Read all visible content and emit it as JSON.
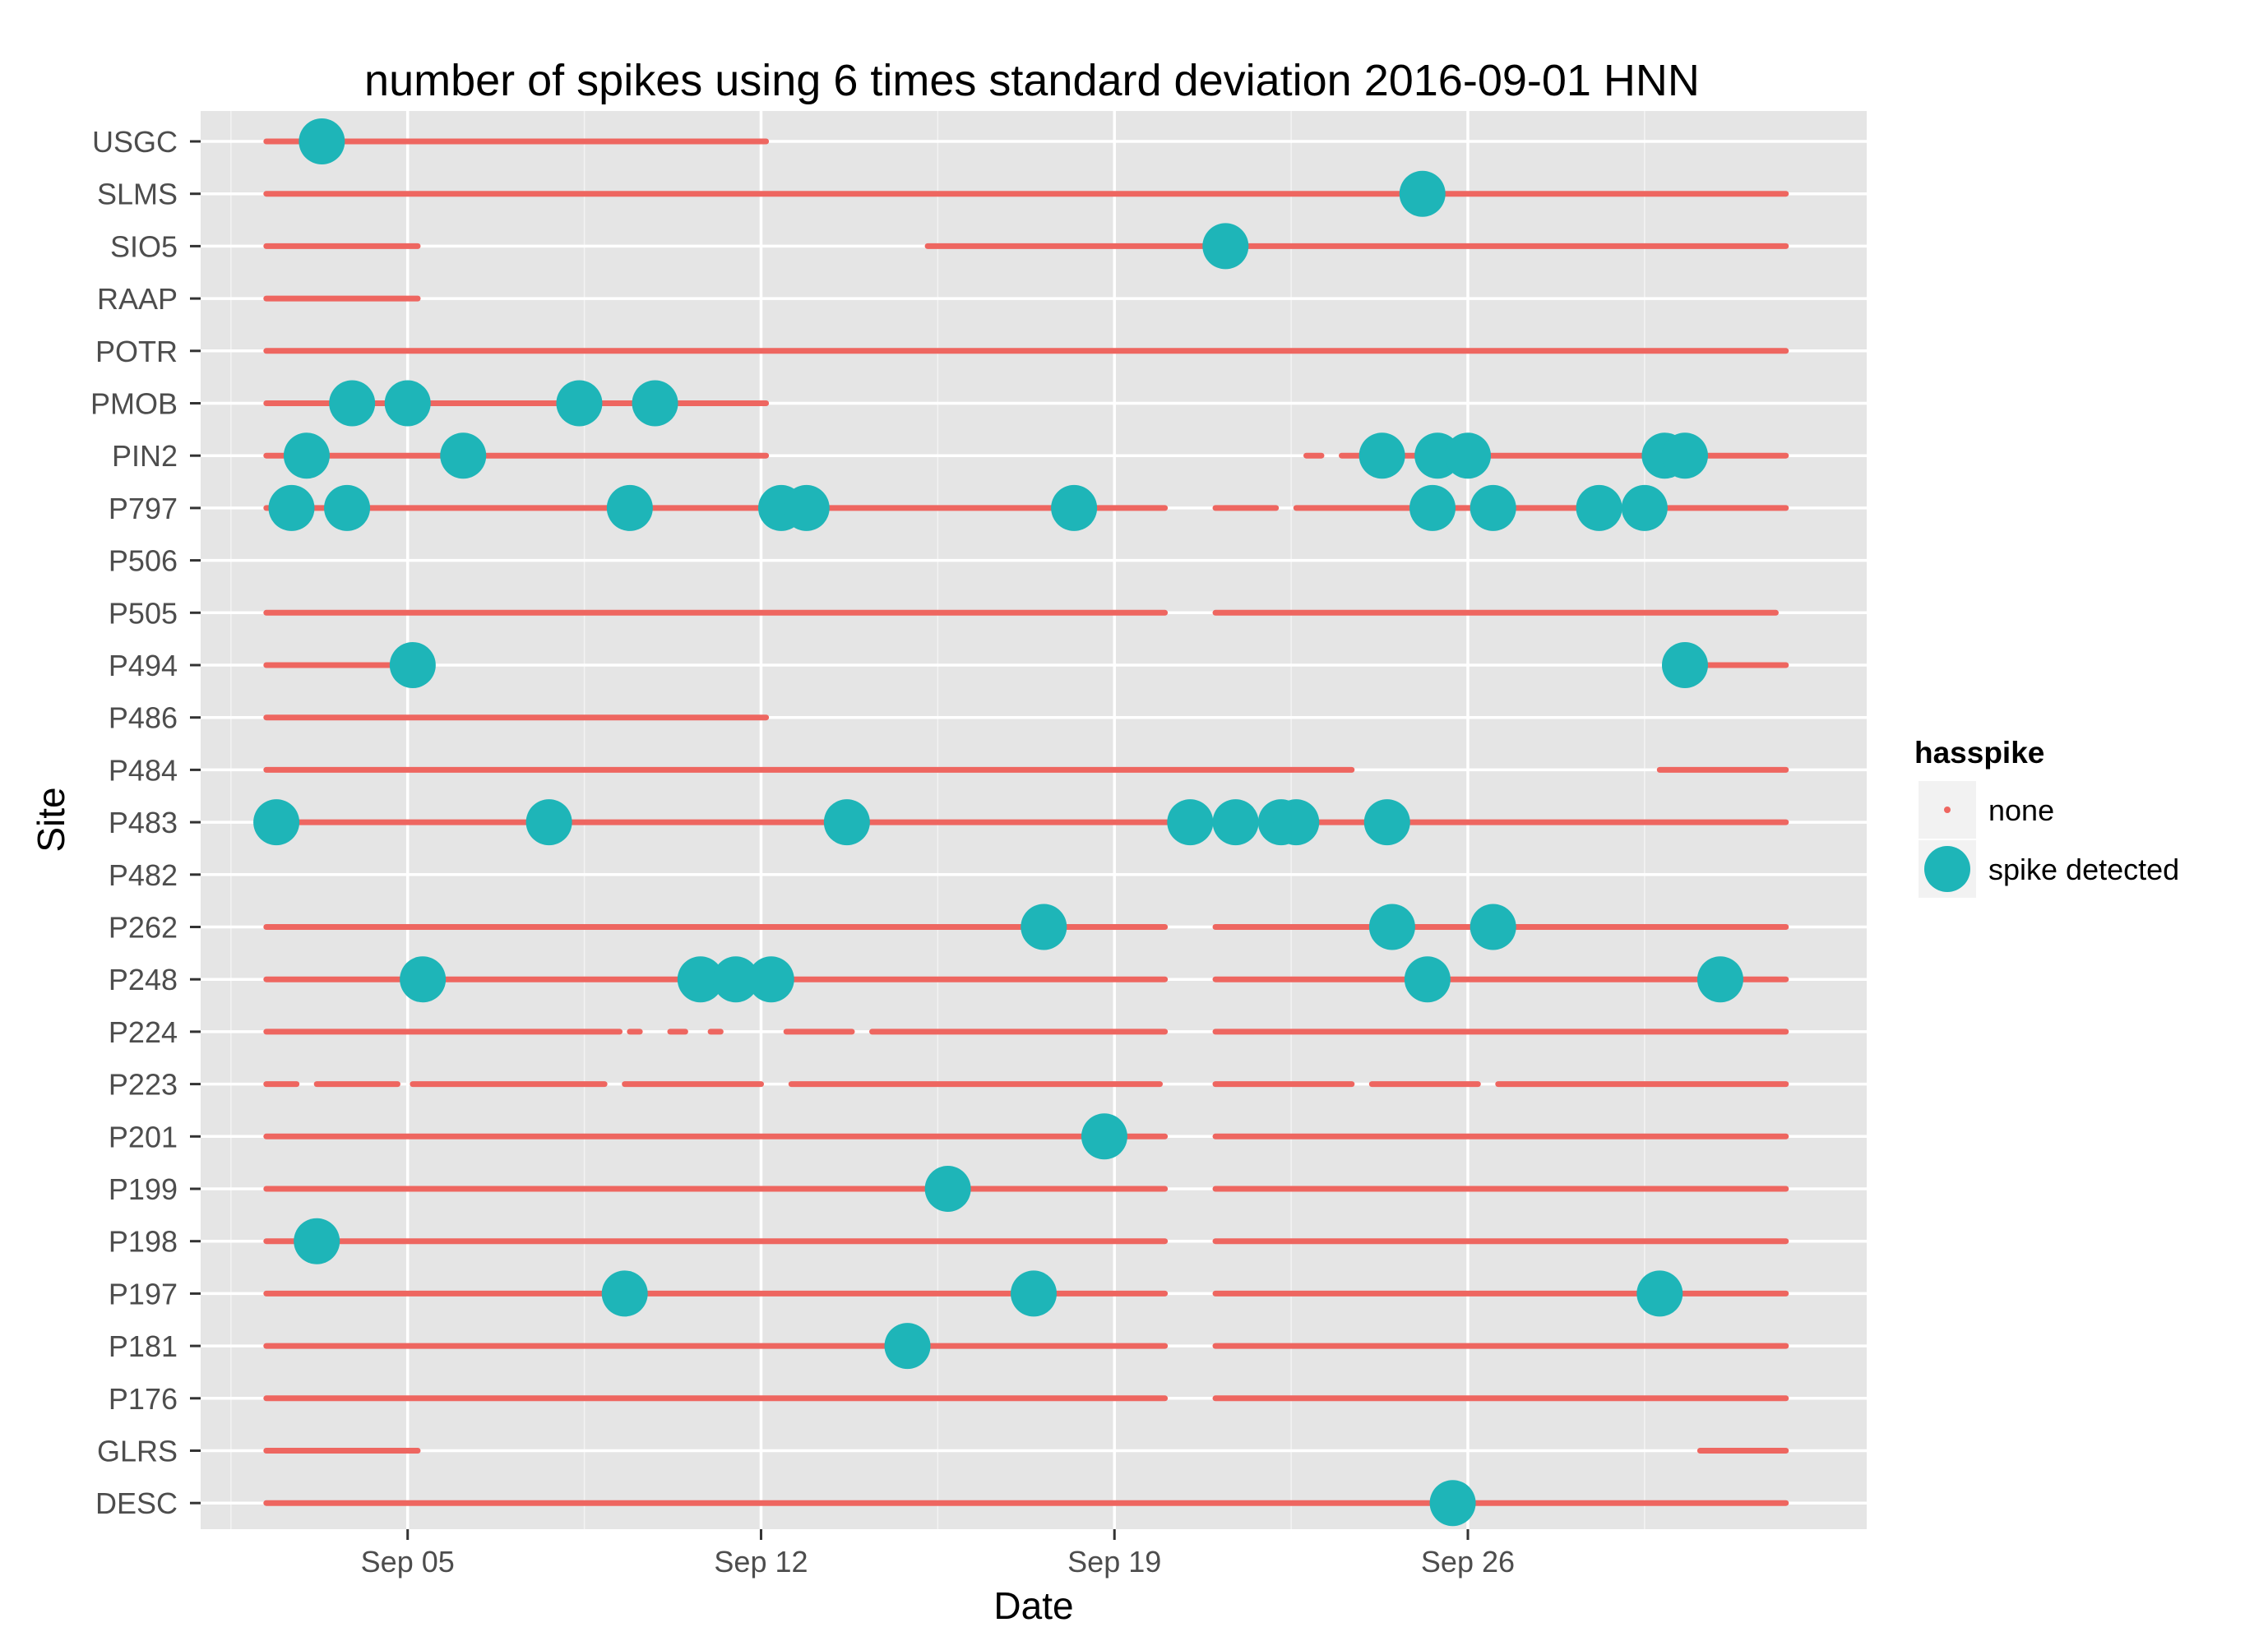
{
  "chart_data": {
    "type": "scatter",
    "title": "number of spikes using  6 times standard deviation 2016-09-01 HNN",
    "xlabel": "Date",
    "ylabel": "Site",
    "x_unit": "day of month, September 2016",
    "xlim": [
      0.9,
      33.9
    ],
    "x_ticks": [
      {
        "value": 5,
        "label": "Sep 05"
      },
      {
        "value": 12,
        "label": "Sep 12"
      },
      {
        "value": 19,
        "label": "Sep 19"
      },
      {
        "value": 26,
        "label": "Sep 26"
      }
    ],
    "categories": [
      "USGC",
      "SLMS",
      "SIO5",
      "RAAP",
      "POTR",
      "PMOB",
      "PIN2",
      "P797",
      "P506",
      "P505",
      "P494",
      "P486",
      "P484",
      "P483",
      "P482",
      "P262",
      "P248",
      "P224",
      "P223",
      "P201",
      "P199",
      "P198",
      "P197",
      "P181",
      "P176",
      "GLRS",
      "DESC"
    ],
    "legend": {
      "title": "hasspike",
      "position": "right",
      "entries": [
        {
          "key": "none",
          "label": "none"
        },
        {
          "key": "spike",
          "label": "spike detected"
        }
      ]
    },
    "colors": {
      "none": "#EE6660",
      "spike": "#1EB5B8",
      "panel": "#E5E5E5",
      "grid": "#FFFFFF"
    },
    "series": [
      {
        "name": "none",
        "site_coverage": [
          {
            "site": "USGC",
            "ranges": [
              [
                2.2,
                12.1
              ]
            ]
          },
          {
            "site": "SLMS",
            "ranges": [
              [
                2.2,
                32.3
              ]
            ]
          },
          {
            "site": "SIO5",
            "ranges": [
              [
                2.2,
                5.2
              ],
              [
                15.3,
                32.3
              ]
            ]
          },
          {
            "site": "RAAP",
            "ranges": [
              [
                2.2,
                5.2
              ]
            ]
          },
          {
            "site": "POTR",
            "ranges": [
              [
                2.2,
                32.3
              ]
            ]
          },
          {
            "site": "PMOB",
            "ranges": [
              [
                2.2,
                12.1
              ]
            ]
          },
          {
            "site": "PIN2",
            "ranges": [
              [
                2.2,
                12.1
              ],
              [
                22.8,
                23.1
              ],
              [
                23.5,
                24.2
              ],
              [
                24.5,
                32.3
              ]
            ]
          },
          {
            "site": "P797",
            "ranges": [
              [
                2.2,
                20.0
              ],
              [
                21.0,
                22.2
              ],
              [
                22.6,
                32.3
              ]
            ]
          },
          {
            "site": "P506",
            "ranges": []
          },
          {
            "site": "P505",
            "ranges": [
              [
                2.2,
                20.0
              ],
              [
                21.0,
                32.1
              ]
            ]
          },
          {
            "site": "P494",
            "ranges": [
              [
                2.2,
                5.2
              ],
              [
                30.6,
                32.3
              ]
            ]
          },
          {
            "site": "P486",
            "ranges": [
              [
                2.2,
                12.1
              ]
            ]
          },
          {
            "site": "P484",
            "ranges": [
              [
                2.2,
                23.7
              ],
              [
                29.8,
                32.3
              ]
            ]
          },
          {
            "site": "P483",
            "ranges": [
              [
                2.2,
                32.3
              ]
            ]
          },
          {
            "site": "P482",
            "ranges": []
          },
          {
            "site": "P262",
            "ranges": [
              [
                2.2,
                20.0
              ],
              [
                21.0,
                32.3
              ]
            ]
          },
          {
            "site": "P248",
            "ranges": [
              [
                2.2,
                20.0
              ],
              [
                21.0,
                32.3
              ]
            ]
          },
          {
            "site": "P224",
            "ranges": [
              [
                2.2,
                9.2
              ],
              [
                9.4,
                9.6
              ],
              [
                10.2,
                10.5
              ],
              [
                11.0,
                11.2
              ],
              [
                12.5,
                13.8
              ],
              [
                14.2,
                20.0
              ],
              [
                21.0,
                32.3
              ]
            ]
          },
          {
            "site": "P223",
            "ranges": [
              [
                2.2,
                2.8
              ],
              [
                3.2,
                4.8
              ],
              [
                5.1,
                8.9
              ],
              [
                9.3,
                12.0
              ],
              [
                12.6,
                19.9
              ],
              [
                21.0,
                23.7
              ],
              [
                24.1,
                26.2
              ],
              [
                26.6,
                32.3
              ]
            ]
          },
          {
            "site": "P201",
            "ranges": [
              [
                2.2,
                20.0
              ],
              [
                21.0,
                32.3
              ]
            ]
          },
          {
            "site": "P199",
            "ranges": [
              [
                2.2,
                20.0
              ],
              [
                21.0,
                32.3
              ]
            ]
          },
          {
            "site": "P198",
            "ranges": [
              [
                2.2,
                20.0
              ],
              [
                21.0,
                32.3
              ]
            ]
          },
          {
            "site": "P197",
            "ranges": [
              [
                2.2,
                20.0
              ],
              [
                21.0,
                32.3
              ]
            ]
          },
          {
            "site": "P181",
            "ranges": [
              [
                2.2,
                20.0
              ],
              [
                21.0,
                32.3
              ]
            ]
          },
          {
            "site": "P176",
            "ranges": [
              [
                2.2,
                20.0
              ],
              [
                21.0,
                32.3
              ]
            ]
          },
          {
            "site": "GLRS",
            "ranges": [
              [
                2.2,
                5.2
              ],
              [
                30.6,
                32.3
              ]
            ]
          },
          {
            "site": "DESC",
            "ranges": [
              [
                2.2,
                32.3
              ]
            ]
          }
        ]
      },
      {
        "name": "spike detected",
        "points": [
          {
            "site": "USGC",
            "x": 3.3
          },
          {
            "site": "SLMS",
            "x": 25.1
          },
          {
            "site": "SIO5",
            "x": 21.2
          },
          {
            "site": "PMOB",
            "x": 3.9
          },
          {
            "site": "PMOB",
            "x": 5.0
          },
          {
            "site": "PMOB",
            "x": 8.4
          },
          {
            "site": "PMOB",
            "x": 9.9
          },
          {
            "site": "PIN2",
            "x": 3.0
          },
          {
            "site": "PIN2",
            "x": 6.1
          },
          {
            "site": "PIN2",
            "x": 24.3
          },
          {
            "site": "PIN2",
            "x": 25.4
          },
          {
            "site": "PIN2",
            "x": 26.0
          },
          {
            "site": "PIN2",
            "x": 29.9
          },
          {
            "site": "PIN2",
            "x": 30.3
          },
          {
            "site": "P797",
            "x": 2.7
          },
          {
            "site": "P797",
            "x": 3.8
          },
          {
            "site": "P797",
            "x": 9.4
          },
          {
            "site": "P797",
            "x": 12.4
          },
          {
            "site": "P797",
            "x": 12.9
          },
          {
            "site": "P797",
            "x": 18.2
          },
          {
            "site": "P797",
            "x": 25.3
          },
          {
            "site": "P797",
            "x": 26.5
          },
          {
            "site": "P797",
            "x": 28.6
          },
          {
            "site": "P797",
            "x": 29.5
          },
          {
            "site": "P494",
            "x": 5.1
          },
          {
            "site": "P494",
            "x": 30.3
          },
          {
            "site": "P483",
            "x": 2.4
          },
          {
            "site": "P483",
            "x": 7.8
          },
          {
            "site": "P483",
            "x": 13.7
          },
          {
            "site": "P483",
            "x": 20.5
          },
          {
            "site": "P483",
            "x": 21.4
          },
          {
            "site": "P483",
            "x": 22.3
          },
          {
            "site": "P483",
            "x": 22.6
          },
          {
            "site": "P483",
            "x": 24.4
          },
          {
            "site": "P262",
            "x": 17.6
          },
          {
            "site": "P262",
            "x": 24.5
          },
          {
            "site": "P262",
            "x": 26.5
          },
          {
            "site": "P248",
            "x": 5.3
          },
          {
            "site": "P248",
            "x": 10.8
          },
          {
            "site": "P248",
            "x": 11.5
          },
          {
            "site": "P248",
            "x": 12.2
          },
          {
            "site": "P248",
            "x": 25.2
          },
          {
            "site": "P248",
            "x": 31.0
          },
          {
            "site": "P201",
            "x": 18.8
          },
          {
            "site": "P199",
            "x": 15.7
          },
          {
            "site": "P198",
            "x": 3.2
          },
          {
            "site": "P197",
            "x": 9.3
          },
          {
            "site": "P197",
            "x": 17.4
          },
          {
            "site": "P197",
            "x": 29.8
          },
          {
            "site": "P181",
            "x": 14.9
          },
          {
            "site": "DESC",
            "x": 25.7
          }
        ]
      }
    ]
  }
}
